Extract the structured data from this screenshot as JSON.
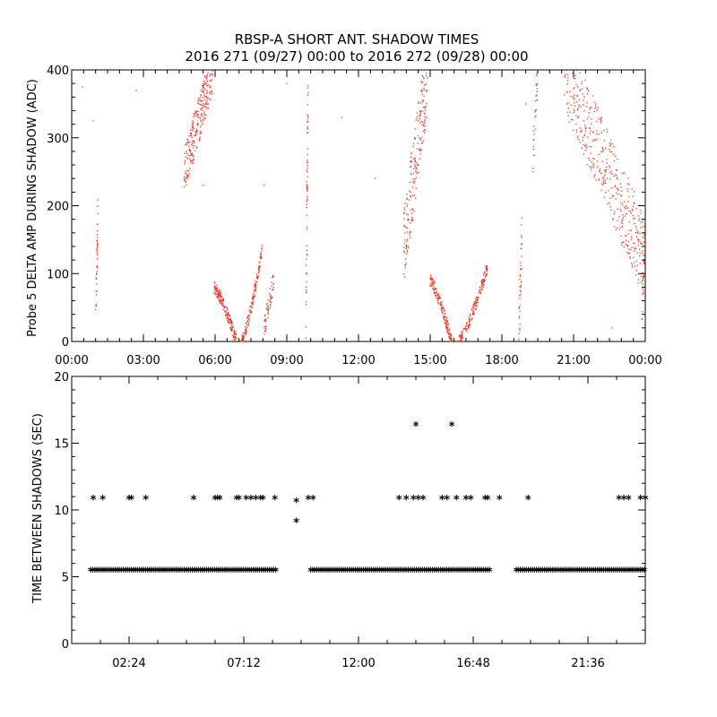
{
  "title_line1": "RBSP-A SHORT ANT. SHADOW TIMES",
  "title_line2": "2016 271 (09/27) 00:00 to 2016 272 (09/28) 00:00",
  "chart_data": [
    {
      "type": "scatter",
      "ylabel": "Probe 5 DELTA AMP DURING SHADOW (ADC)",
      "xlabel": "",
      "xlim_hours": [
        0,
        24
      ],
      "ylim": [
        0,
        400
      ],
      "x_ticks": [
        "00:00",
        "03:00",
        "06:00",
        "09:00",
        "12:00",
        "15:00",
        "18:00",
        "21:00",
        "00:00"
      ],
      "y_ticks": [
        "0",
        "100",
        "200",
        "300",
        "400"
      ],
      "point_color": "#e8321e",
      "grid": false,
      "clusters": [
        {
          "x0": 1.0,
          "x1": 1.1,
          "y0": 40,
          "y1": 195,
          "n": 40,
          "shape": "band"
        },
        {
          "x0": 4.7,
          "x1": 5.9,
          "y0": 250,
          "y1": 400,
          "n": 260,
          "shape": "band"
        },
        {
          "x0": 5.95,
          "x1": 6.9,
          "y0": 80,
          "y1": 0,
          "n": 170,
          "shape": "arc"
        },
        {
          "x0": 7.1,
          "x1": 8.0,
          "y0": 0,
          "y1": 140,
          "n": 150,
          "shape": "arc"
        },
        {
          "x0": 8.05,
          "x1": 8.45,
          "y0": 20,
          "y1": 90,
          "n": 60,
          "shape": "band"
        },
        {
          "x0": 9.8,
          "x1": 9.9,
          "y0": 30,
          "y1": 400,
          "n": 70,
          "shape": "band"
        },
        {
          "x0": 13.9,
          "x1": 14.9,
          "y0": 140,
          "y1": 400,
          "n": 220,
          "shape": "band"
        },
        {
          "x0": 15.0,
          "x1": 15.9,
          "y0": 90,
          "y1": 0,
          "n": 160,
          "shape": "arc"
        },
        {
          "x0": 16.2,
          "x1": 17.4,
          "y0": 0,
          "y1": 110,
          "n": 170,
          "shape": "arc"
        },
        {
          "x0": 18.7,
          "x1": 18.85,
          "y0": 0,
          "y1": 170,
          "n": 40,
          "shape": "band"
        },
        {
          "x0": 19.3,
          "x1": 19.5,
          "y0": 270,
          "y1": 400,
          "n": 40,
          "shape": "band"
        },
        {
          "x0": 20.6,
          "x1": 23.9,
          "y0": 400,
          "y1": 130,
          "n": 420,
          "shape": "band"
        },
        {
          "x0": 23.85,
          "x1": 24.0,
          "y0": 30,
          "y1": 180,
          "n": 40,
          "shape": "band"
        }
      ],
      "sparse_points": [
        [
          0.45,
          375
        ],
        [
          0.9,
          325
        ],
        [
          2.7,
          370
        ],
        [
          5.5,
          230
        ],
        [
          8.05,
          230
        ],
        [
          9.0,
          380
        ],
        [
          11.3,
          330
        ],
        [
          12.7,
          240
        ],
        [
          19.0,
          350
        ],
        [
          22.6,
          20
        ]
      ]
    },
    {
      "type": "scatter",
      "ylabel": "TIME BETWEEN SHADOWS (SEC)",
      "xlabel": "",
      "xlim_hours": [
        0,
        24
      ],
      "ylim": [
        0,
        20
      ],
      "x_ticks": [
        "02:24",
        "07:12",
        "12:00",
        "16:48",
        "21:36"
      ],
      "y_ticks": [
        "0",
        "5",
        "10",
        "15",
        "20"
      ],
      "marker": "*",
      "grid": false,
      "baseline": {
        "value": 5.4,
        "segments": [
          [
            0.8,
            8.6
          ],
          [
            10.0,
            17.5
          ],
          [
            18.6,
            24.0
          ]
        ]
      },
      "points": [
        [
          0.9,
          10.8
        ],
        [
          1.3,
          10.8
        ],
        [
          2.4,
          10.8
        ],
        [
          2.5,
          10.8
        ],
        [
          3.1,
          10.8
        ],
        [
          5.1,
          10.8
        ],
        [
          6.0,
          10.8
        ],
        [
          6.1,
          10.8
        ],
        [
          6.2,
          10.8
        ],
        [
          6.9,
          10.8
        ],
        [
          7.0,
          10.8
        ],
        [
          7.3,
          10.8
        ],
        [
          7.5,
          10.8
        ],
        [
          7.7,
          10.8
        ],
        [
          7.9,
          10.8
        ],
        [
          8.0,
          10.8
        ],
        [
          8.5,
          10.8
        ],
        [
          9.4,
          10.6
        ],
        [
          9.4,
          9.1
        ],
        [
          9.9,
          10.8
        ],
        [
          10.1,
          10.8
        ],
        [
          13.7,
          10.8
        ],
        [
          14.0,
          10.8
        ],
        [
          14.3,
          10.8
        ],
        [
          14.5,
          10.8
        ],
        [
          14.7,
          10.8
        ],
        [
          15.5,
          10.8
        ],
        [
          15.7,
          10.8
        ],
        [
          16.1,
          10.8
        ],
        [
          16.5,
          10.8
        ],
        [
          16.7,
          10.8
        ],
        [
          17.3,
          10.8
        ],
        [
          17.4,
          10.8
        ],
        [
          17.9,
          10.8
        ],
        [
          19.1,
          10.8
        ],
        [
          22.9,
          10.8
        ],
        [
          23.1,
          10.8
        ],
        [
          23.3,
          10.8
        ],
        [
          23.8,
          10.8
        ],
        [
          24.0,
          10.8
        ],
        [
          14.4,
          16.3
        ],
        [
          15.9,
          16.3
        ]
      ]
    }
  ]
}
